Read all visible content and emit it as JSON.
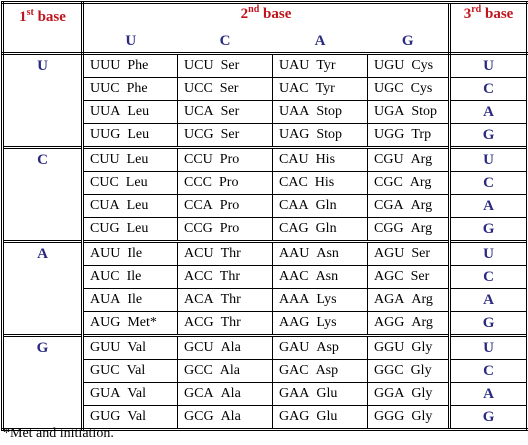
{
  "header": {
    "first_base": {
      "number": "1",
      "superscript": "st",
      "label": "base"
    },
    "second_base": {
      "number": "2",
      "superscript": "nd",
      "label": "base"
    },
    "third_base": {
      "number": "3",
      "superscript": "rd",
      "label": "base"
    }
  },
  "second_base_letters": [
    "U",
    "C",
    "A",
    "G"
  ],
  "blocks": [
    {
      "first": "U",
      "rows": [
        {
          "cells": [
            [
              "UUU",
              "Phe"
            ],
            [
              "UCU",
              "Ser"
            ],
            [
              "UAU",
              "Tyr"
            ],
            [
              "UGU",
              "Cys"
            ]
          ],
          "third": "U"
        },
        {
          "cells": [
            [
              "UUC",
              "Phe"
            ],
            [
              "UCC",
              "Ser"
            ],
            [
              "UAC",
              "Tyr"
            ],
            [
              "UGC",
              "Cys"
            ]
          ],
          "third": "C"
        },
        {
          "cells": [
            [
              "UUA",
              "Leu"
            ],
            [
              "UCA",
              "Ser"
            ],
            [
              "UAA",
              "Stop"
            ],
            [
              "UGA",
              "Stop"
            ]
          ],
          "third": "A"
        },
        {
          "cells": [
            [
              "UUG",
              "Leu"
            ],
            [
              "UCG",
              "Ser"
            ],
            [
              "UAG",
              "Stop"
            ],
            [
              "UGG",
              "Trp"
            ]
          ],
          "third": "G"
        }
      ]
    },
    {
      "first": "C",
      "rows": [
        {
          "cells": [
            [
              "CUU",
              "Leu"
            ],
            [
              "CCU",
              "Pro"
            ],
            [
              "CAU",
              "His"
            ],
            [
              "CGU",
              "Arg"
            ]
          ],
          "third": "U"
        },
        {
          "cells": [
            [
              "CUC",
              "Leu"
            ],
            [
              "CCC",
              "Pro"
            ],
            [
              "CAC",
              "His"
            ],
            [
              "CGC",
              "Arg"
            ]
          ],
          "third": "C"
        },
        {
          "cells": [
            [
              "CUA",
              "Leu"
            ],
            [
              "CCA",
              "Pro"
            ],
            [
              "CAA",
              "Gln"
            ],
            [
              "CGA",
              "Arg"
            ]
          ],
          "third": "A"
        },
        {
          "cells": [
            [
              "CUG",
              "Leu"
            ],
            [
              "CCG",
              "Pro"
            ],
            [
              "CAG",
              "Gln"
            ],
            [
              "CGG",
              "Arg"
            ]
          ],
          "third": "G"
        }
      ]
    },
    {
      "first": "A",
      "rows": [
        {
          "cells": [
            [
              "AUU",
              "Ile"
            ],
            [
              "ACU",
              "Thr"
            ],
            [
              "AAU",
              "Asn"
            ],
            [
              "AGU",
              "Ser"
            ]
          ],
          "third": "U"
        },
        {
          "cells": [
            [
              "AUC",
              "Ile"
            ],
            [
              "ACC",
              "Thr"
            ],
            [
              "AAC",
              "Asn"
            ],
            [
              "AGC",
              "Ser"
            ]
          ],
          "third": "C"
        },
        {
          "cells": [
            [
              "AUA",
              "Ile"
            ],
            [
              "ACA",
              "Thr"
            ],
            [
              "AAA",
              "Lys"
            ],
            [
              "AGA",
              "Arg"
            ]
          ],
          "third": "A"
        },
        {
          "cells": [
            [
              "AUG",
              "Met*"
            ],
            [
              "ACG",
              "Thr"
            ],
            [
              "AAG",
              "Lys"
            ],
            [
              "AGG",
              "Arg"
            ]
          ],
          "third": "G"
        }
      ]
    },
    {
      "first": "G",
      "rows": [
        {
          "cells": [
            [
              "GUU",
              "Val"
            ],
            [
              "GCU",
              "Ala"
            ],
            [
              "GAU",
              "Asp"
            ],
            [
              "GGU",
              "Gly"
            ]
          ],
          "third": "U"
        },
        {
          "cells": [
            [
              "GUC",
              "Val"
            ],
            [
              "GCC",
              "Ala"
            ],
            [
              "GAC",
              "Asp"
            ],
            [
              "GGC",
              "Gly"
            ]
          ],
          "third": "C"
        },
        {
          "cells": [
            [
              "GUA",
              "Val"
            ],
            [
              "GCA",
              "Ala"
            ],
            [
              "GAA",
              "Glu"
            ],
            [
              "GGA",
              "Gly"
            ]
          ],
          "third": "A"
        },
        {
          "cells": [
            [
              "GUG",
              "Val"
            ],
            [
              "GCG",
              "Ala"
            ],
            [
              "GAG",
              "Glu"
            ],
            [
              "GGG",
              "Gly"
            ]
          ],
          "third": "G"
        }
      ]
    }
  ],
  "footnote": "*Met and initiation."
}
